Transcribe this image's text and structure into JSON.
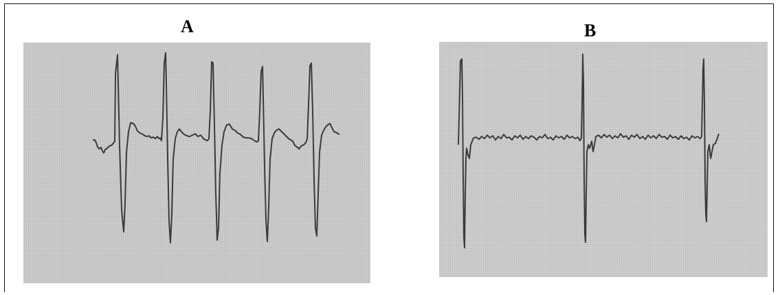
{
  "panels": [
    {
      "id": "A",
      "label": "A"
    },
    {
      "id": "B",
      "label": "B"
    }
  ],
  "colors": {
    "paper": "#c9c9c9",
    "paper_dot": "#a9a9a9",
    "trace": "#3a3a3a",
    "frame": "#111111"
  }
}
